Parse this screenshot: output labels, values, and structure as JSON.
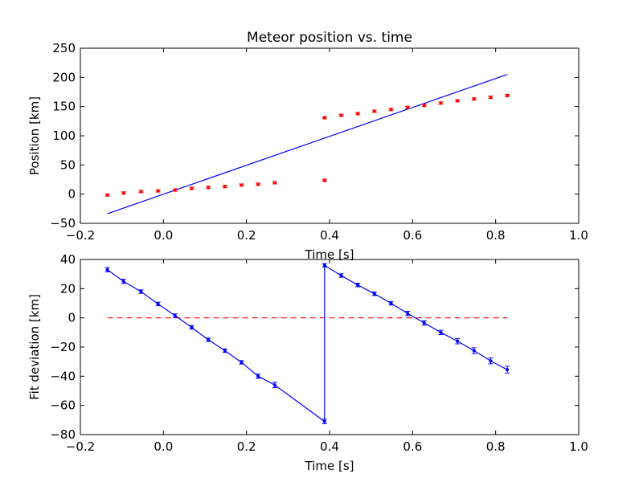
{
  "chart_data": [
    {
      "type": "scatter",
      "title": "Meteor position vs. time",
      "xlabel": "Time [s]",
      "ylabel": "Position [km]",
      "xlim": [
        -0.2,
        1.0
      ],
      "ylim": [
        -50,
        250
      ],
      "xticks": [
        "−0.2",
        "0.0",
        "0.2",
        "0.4",
        "0.6",
        "0.8",
        "1.0"
      ],
      "yticks": [
        "−50",
        "0",
        "50",
        "100",
        "150",
        "200",
        "250"
      ],
      "grid": false,
      "points": {
        "color": "#ff0000",
        "x": [
          -0.135,
          -0.096,
          -0.054,
          -0.013,
          0.028,
          0.068,
          0.108,
          0.148,
          0.188,
          0.228,
          0.268,
          0.388,
          0.388,
          0.428,
          0.468,
          0.508,
          0.548,
          0.588,
          0.628,
          0.668,
          0.708,
          0.748,
          0.788,
          0.828
        ],
        "y": [
          -1.5,
          2,
          4.5,
          5.5,
          7,
          10,
          11.5,
          13,
          15.5,
          17,
          19.5,
          23.5,
          131,
          135,
          138,
          142,
          145,
          148.5,
          152,
          156,
          160,
          163,
          166,
          169
        ],
        "yerr": 2
      },
      "fit_line": {
        "color": "#0000ff",
        "x": [
          -0.135,
          0.828
        ],
        "y": [
          -33.5,
          205
        ]
      }
    },
    {
      "type": "line",
      "title": "",
      "xlabel": "Time [s]",
      "ylabel": "Fit deviation [km]",
      "xlim": [
        -0.2,
        1.0
      ],
      "ylim": [
        -80,
        40
      ],
      "xticks": [
        "−0.2",
        "0.0",
        "0.2",
        "0.4",
        "0.6",
        "0.8",
        "1.0"
      ],
      "yticks": [
        "−80",
        "−60",
        "−40",
        "−20",
        "0",
        "20",
        "40"
      ],
      "grid": false,
      "series": {
        "color": "#0000ff",
        "x": [
          -0.135,
          -0.096,
          -0.054,
          -0.013,
          0.028,
          0.068,
          0.108,
          0.148,
          0.188,
          0.228,
          0.268,
          0.388,
          0.388,
          0.428,
          0.468,
          0.508,
          0.548,
          0.588,
          0.628,
          0.668,
          0.708,
          0.748,
          0.788,
          0.828
        ],
        "y": [
          33,
          25,
          18,
          9.5,
          1.5,
          -6.5,
          -15,
          -22.5,
          -30.5,
          -40,
          -46,
          -71,
          36,
          29,
          22.5,
          16.5,
          10,
          3,
          -3.5,
          -10,
          -16,
          -22.5,
          -29.5,
          -35.5
        ],
        "yerr": [
          1.5,
          1.5,
          1.2,
          1.2,
          1.2,
          1.2,
          1.2,
          1.2,
          1.2,
          1.5,
          1.8,
          1.5,
          1.2,
          1.2,
          1.2,
          1.2,
          1.2,
          1.5,
          1.5,
          1.5,
          1.8,
          2,
          2,
          2.3
        ]
      },
      "zero_line": {
        "color": "#ff0000",
        "style": "dashed",
        "x": [
          -0.135,
          0.828
        ],
        "y": [
          0,
          0
        ]
      }
    }
  ]
}
